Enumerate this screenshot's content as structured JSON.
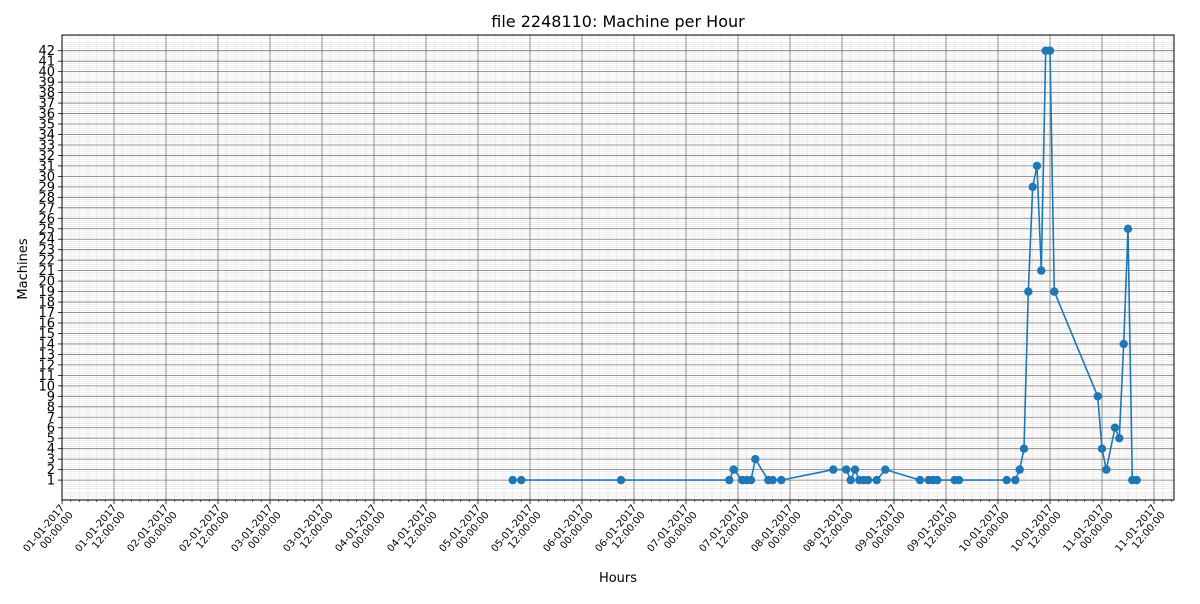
{
  "chart_data": {
    "type": "line",
    "title": "file 2248110: Machine per Hour",
    "xlabel": "Hours",
    "ylabel": "Machines",
    "grid": true,
    "ylim": [
      -0.9,
      43.5
    ],
    "y_ticks": [
      1,
      2,
      3,
      4,
      5,
      6,
      7,
      8,
      9,
      10,
      11,
      12,
      13,
      14,
      15,
      16,
      17,
      18,
      19,
      20,
      21,
      22,
      23,
      24,
      25,
      26,
      27,
      28,
      29,
      30,
      31,
      32,
      33,
      34,
      35,
      36,
      37,
      38,
      39,
      40,
      41,
      42
    ],
    "x_ticks": [
      [
        "01-01-2017",
        "00:00:00"
      ],
      [
        "01-01-2017",
        "12:00:00"
      ],
      [
        "02-01-2017",
        "00:00:00"
      ],
      [
        "02-01-2017",
        "12:00:00"
      ],
      [
        "03-01-2017",
        "00:00:00"
      ],
      [
        "03-01-2017",
        "12:00:00"
      ],
      [
        "04-01-2017",
        "00:00:00"
      ],
      [
        "04-01-2017",
        "12:00:00"
      ],
      [
        "05-01-2017",
        "00:00:00"
      ],
      [
        "05-01-2017",
        "12:00:00"
      ],
      [
        "06-01-2017",
        "00:00:00"
      ],
      [
        "06-01-2017",
        "12:00:00"
      ],
      [
        "07-01-2017",
        "00:00:00"
      ],
      [
        "07-01-2017",
        "12:00:00"
      ],
      [
        "08-01-2017",
        "00:00:00"
      ],
      [
        "08-01-2017",
        "12:00:00"
      ],
      [
        "09-01-2017",
        "00:00:00"
      ],
      [
        "09-01-2017",
        "12:00:00"
      ],
      [
        "10-01-2017",
        "00:00:00"
      ],
      [
        "10-01-2017",
        "12:00:00"
      ],
      [
        "11-01-2017",
        "00:00:00"
      ],
      [
        "11-01-2017",
        "12:00:00"
      ]
    ],
    "series": [
      {
        "color": "#1f77b4",
        "x": [
          "05-01-2017 08:00",
          "05-01-2017 10:00",
          "06-01-2017 09:00",
          "07-01-2017 10:00",
          "07-01-2017 11:00",
          "07-01-2017 13:00",
          "07-01-2017 14:00",
          "07-01-2017 15:00",
          "07-01-2017 16:00",
          "07-01-2017 19:00",
          "07-01-2017 20:00",
          "07-01-2017 22:00",
          "08-01-2017 10:00",
          "08-01-2017 13:00",
          "08-01-2017 14:00",
          "08-01-2017 15:00",
          "08-01-2017 16:00",
          "08-01-2017 17:00",
          "08-01-2017 18:00",
          "08-01-2017 20:00",
          "08-01-2017 22:00",
          "09-01-2017 06:00",
          "09-01-2017 08:00",
          "09-01-2017 09:00",
          "09-01-2017 10:00",
          "09-01-2017 14:00",
          "09-01-2017 15:00",
          "10-01-2017 02:00",
          "10-01-2017 04:00",
          "10-01-2017 05:00",
          "10-01-2017 06:00",
          "10-01-2017 07:00",
          "10-01-2017 08:00",
          "10-01-2017 09:00",
          "10-01-2017 10:00",
          "10-01-2017 11:00",
          "10-01-2017 12:00",
          "10-01-2017 13:00",
          "10-01-2017 23:00",
          "11-01-2017 00:00",
          "11-01-2017 01:00",
          "11-01-2017 03:00",
          "11-01-2017 04:00",
          "11-01-2017 05:00",
          "11-01-2017 06:00",
          "11-01-2017 07:00",
          "11-01-2017 08:00"
        ],
        "y": [
          1,
          1,
          1,
          1,
          2,
          1,
          1,
          1,
          3,
          1,
          1,
          1,
          2,
          2,
          1,
          2,
          1,
          1,
          1,
          1,
          2,
          1,
          1,
          1,
          1,
          1,
          1,
          1,
          1,
          2,
          4,
          19,
          29,
          31,
          21,
          42,
          42,
          19,
          9,
          4,
          2,
          6,
          5,
          14,
          25,
          1,
          1
        ]
      }
    ]
  }
}
